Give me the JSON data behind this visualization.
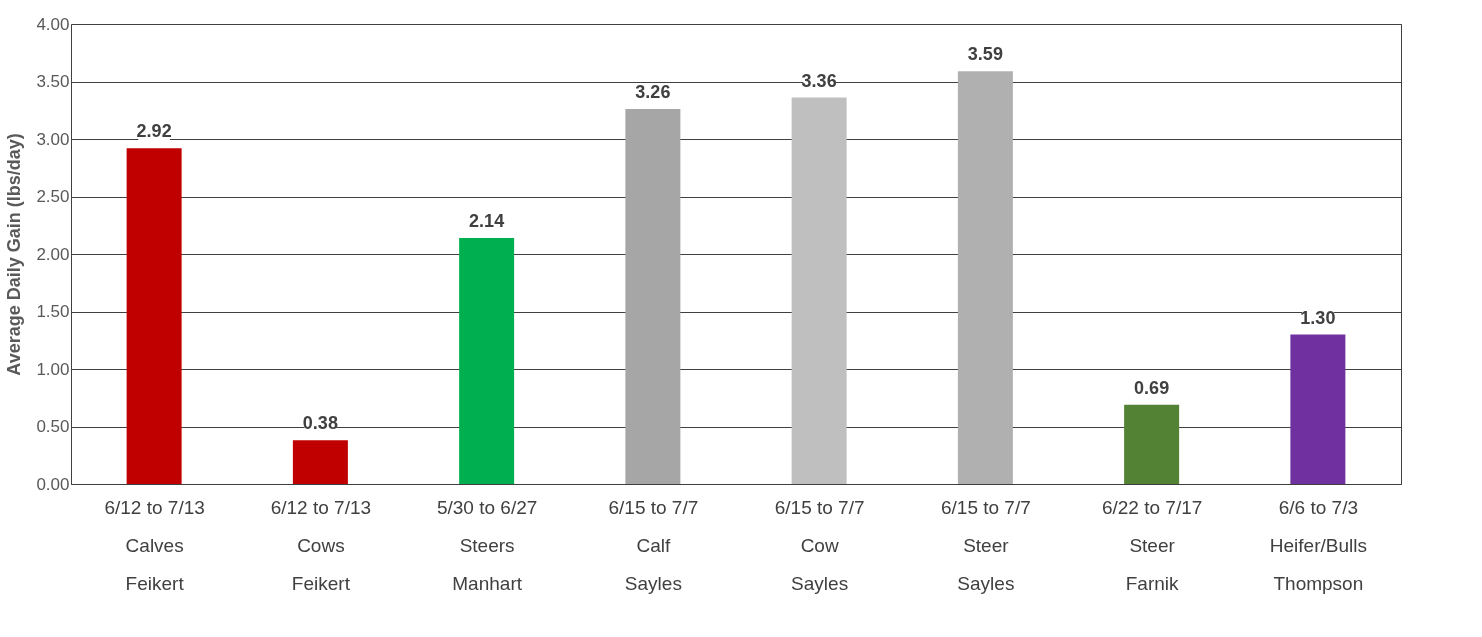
{
  "chart_data": {
    "type": "bar",
    "ylabel": "Average Daily Gain (lbs/day)",
    "categories": [
      "6/12 to 7/13\nCalves\nFeikert",
      "6/12 to 7/13\nCows\nFeikert",
      "5/30 to 6/27\nSteers\nManhart",
      "6/15 to 7/7\nCalf\nSayles",
      "6/15 to 7/7\nCow\nSayles",
      "6/15 to 7/7\nSteer\nSayles",
      "6/22 to 7/17\nSteer\nFarnik",
      "6/6 to 7/3\nHeifer/Bulls\nThompson"
    ],
    "values": [
      2.92,
      0.38,
      2.14,
      3.26,
      3.36,
      3.59,
      0.69,
      1.3
    ],
    "colors": [
      "#c00000",
      "#c00000",
      "#00b050",
      "#a6a6a6",
      "#bfbfbf",
      "#b0b0b0",
      "#548235",
      "#7030a0"
    ],
    "value_labels": [
      "2.92",
      "0.38",
      "2.14",
      "3.26",
      "3.36",
      "3.59",
      "0.69",
      "1.30"
    ],
    "ylim": [
      0,
      4
    ],
    "yticks": [
      {
        "value": 0,
        "label": "0.00"
      },
      {
        "value": 0.5,
        "label": "0.50"
      },
      {
        "value": 1,
        "label": "1.00"
      },
      {
        "value": 1.5,
        "label": "1.50"
      },
      {
        "value": 2,
        "label": "2.00"
      },
      {
        "value": 2.5,
        "label": "2.50"
      },
      {
        "value": 3,
        "label": "3.00"
      },
      {
        "value": 3.5,
        "label": "3.50"
      },
      {
        "value": 4,
        "label": "4.00"
      }
    ],
    "grid": "y"
  }
}
